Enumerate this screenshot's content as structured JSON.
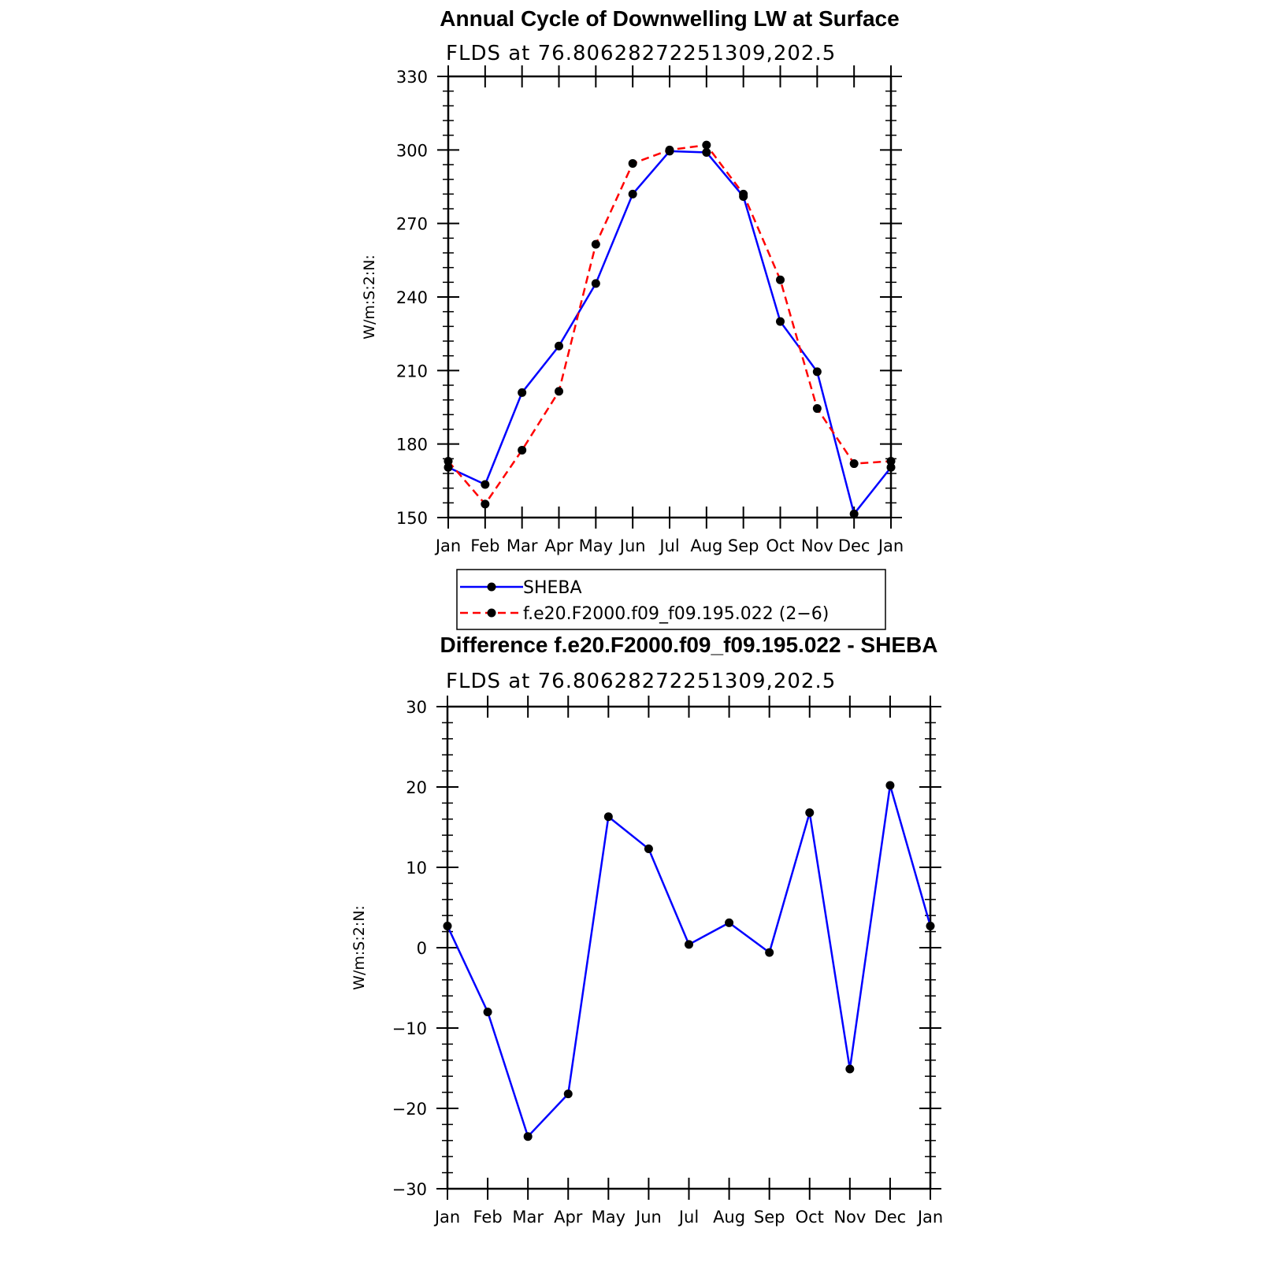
{
  "chart_data": [
    {
      "type": "line",
      "title": "Annual Cycle of Downwelling LW at Surface",
      "subtitle": "FLDS at 76.80628272251309,202.5",
      "ylabel": "W/m:S:2:N:",
      "xlabel": "",
      "categories": [
        "Jan",
        "Feb",
        "Mar",
        "Apr",
        "May",
        "Jun",
        "Jul",
        "Aug",
        "Sep",
        "Oct",
        "Nov",
        "Dec",
        "Jan"
      ],
      "ylim": [
        150,
        330
      ],
      "yticks": [
        "150",
        "180",
        "210",
        "240",
        "270",
        "300",
        "330"
      ],
      "grid": false,
      "legend": "below",
      "series": [
        {
          "name": "SHEBA",
          "color": "#0000ff",
          "dash": "solid",
          "values": [
            170.5,
            163.5,
            201,
            220,
            245.5,
            282,
            299.5,
            299,
            281,
            230,
            209.5,
            151.5,
            170.5
          ]
        },
        {
          "name": "f.e20.F2000.f09_f09.195.022 (2−6)",
          "color": "#ff0000",
          "dash": "dashed",
          "values": [
            173,
            155.5,
            177.5,
            201.5,
            261.5,
            294.5,
            300,
            302,
            282,
            247,
            194.5,
            172,
            173
          ]
        }
      ]
    },
    {
      "type": "line",
      "title": "Difference f.e20.F2000.f09_f09.195.022 - SHEBA",
      "subtitle": "FLDS at 76.80628272251309,202.5",
      "ylabel": "W/m:S:2:N:",
      "xlabel": "",
      "categories": [
        "Jan",
        "Feb",
        "Mar",
        "Apr",
        "May",
        "Jun",
        "Jul",
        "Aug",
        "Sep",
        "Oct",
        "Nov",
        "Dec",
        "Jan"
      ],
      "ylim": [
        -30,
        30
      ],
      "yticks": [
        "−30",
        "−20",
        "−10",
        "0",
        "10",
        "20",
        "30"
      ],
      "grid": false,
      "legend": "none",
      "series": [
        {
          "name": "",
          "color": "#0000ff",
          "dash": "solid",
          "values": [
            2.7,
            -8,
            -23.5,
            -18.2,
            16.3,
            12.3,
            0.4,
            3.1,
            -0.6,
            16.8,
            -15.1,
            20.2,
            2.7
          ]
        }
      ]
    }
  ]
}
